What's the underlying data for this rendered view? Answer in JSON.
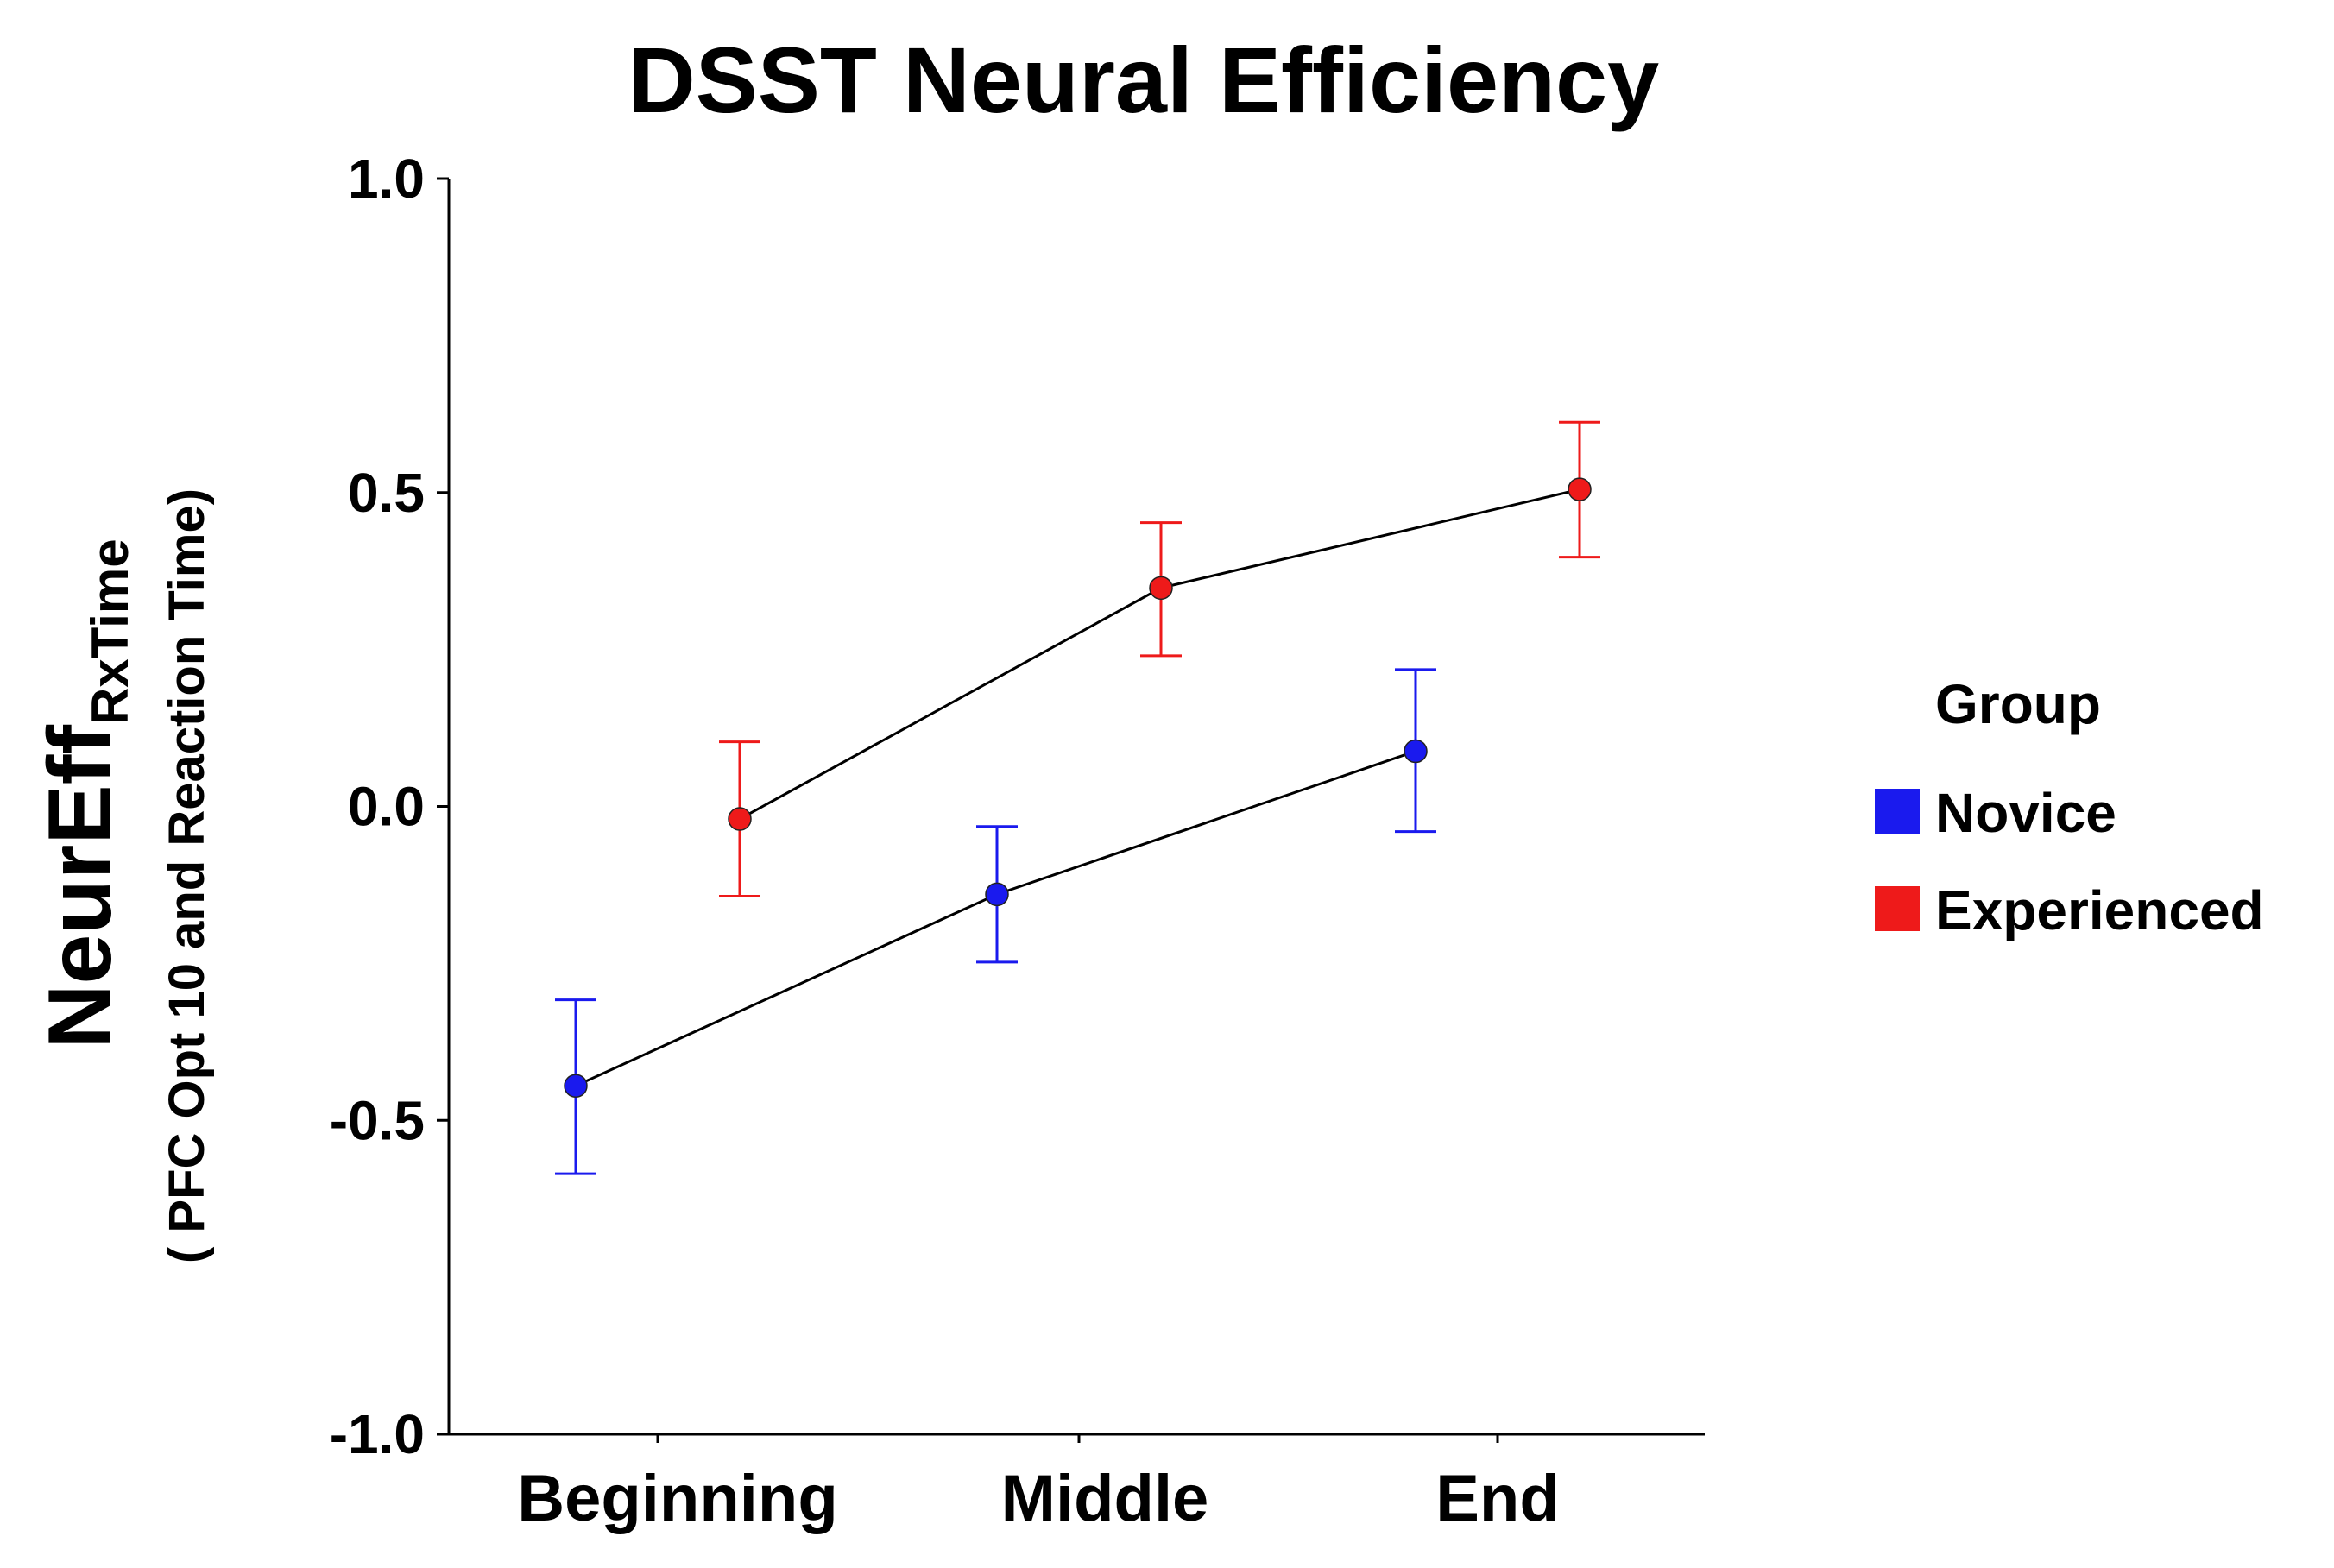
{
  "chart_data": {
    "type": "line",
    "title": "DSST Neural Efficiency",
    "ylabel_main": "NeurEff",
    "ylabel_sub": "RxTime",
    "ylabel_paren": "( PFC Opt 10 and Reaction Time)",
    "xlabel": "",
    "categories": [
      "Beginning",
      "Middle",
      "End"
    ],
    "ylim": [
      -1.0,
      1.0
    ],
    "yticks": [
      -1.0,
      -0.5,
      0.0,
      0.5,
      1.0
    ],
    "ytick_labels": [
      "-1.0",
      "-0.5",
      "0.0",
      "0.5",
      "1.0"
    ],
    "grid": false,
    "legend_title": "Group",
    "legend_position": "right",
    "series": [
      {
        "name": "Novice",
        "color": "#1a1aee",
        "values": [
          -0.445,
          -0.14,
          0.088
        ],
        "err_low": [
          -0.585,
          -0.248,
          -0.04
        ],
        "err_high": [
          -0.308,
          -0.032,
          0.218
        ]
      },
      {
        "name": "Experienced",
        "color": "#ee1a1a",
        "values": [
          -0.02,
          0.348,
          0.505
        ],
        "err_low": [
          -0.143,
          0.24,
          0.397
        ],
        "err_high": [
          0.103,
          0.452,
          0.612
        ]
      }
    ]
  }
}
